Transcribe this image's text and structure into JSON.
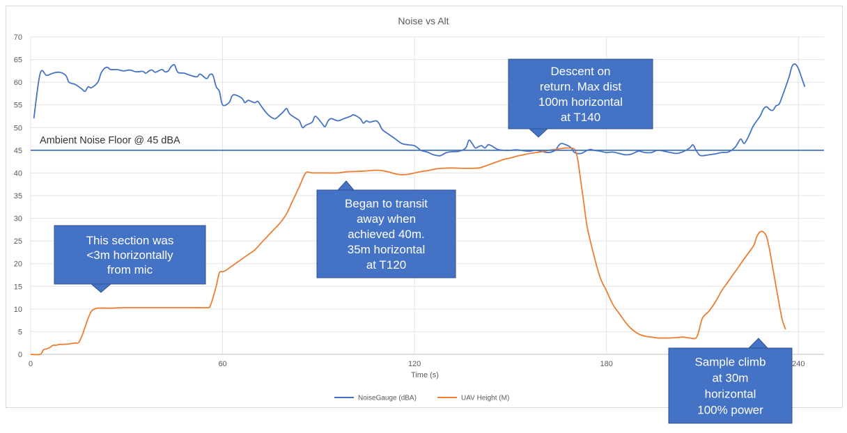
{
  "chart_data": {
    "type": "line",
    "title": "Noise vs Alt",
    "xlabel": "Time (s)",
    "ylabel": "",
    "xlim": [
      0,
      248
    ],
    "ylim": [
      0,
      70
    ],
    "x_ticks": [
      "0",
      "60",
      "120",
      "180",
      "240"
    ],
    "y_ticks": [
      "0",
      "5",
      "10",
      "15",
      "20",
      "25",
      "30",
      "35",
      "40",
      "45",
      "50",
      "55",
      "60",
      "65",
      "70"
    ],
    "grid": true,
    "legend_position": "bottom",
    "reference_line": {
      "y": 45,
      "label": "Ambient Noise Floor @ 45 dBA"
    },
    "series": [
      {
        "name": "NoiseGauge (dBA)",
        "color": "#4472c4",
        "points": [
          [
            1,
            52
          ],
          [
            3,
            62
          ],
          [
            5,
            61.5
          ],
          [
            7,
            62
          ],
          [
            9,
            62.2
          ],
          [
            11,
            61.5
          ],
          [
            12,
            60
          ],
          [
            14,
            59.5
          ],
          [
            16,
            58.5
          ],
          [
            17,
            58
          ],
          [
            18,
            59
          ],
          [
            19,
            58.8
          ],
          [
            21,
            60
          ],
          [
            22,
            62
          ],
          [
            23,
            63
          ],
          [
            24,
            63.3
          ],
          [
            25,
            62.8
          ],
          [
            27,
            62.8
          ],
          [
            29,
            62.5
          ],
          [
            31,
            62.7
          ],
          [
            33,
            62.3
          ],
          [
            35,
            62.4
          ],
          [
            36,
            62
          ],
          [
            37,
            62.5
          ],
          [
            38,
            62.7
          ],
          [
            39,
            62.2
          ],
          [
            41,
            62.8
          ],
          [
            42,
            62.3
          ],
          [
            43,
            62.5
          ],
          [
            44,
            63.5
          ],
          [
            45,
            63.8
          ],
          [
            46,
            62.2
          ],
          [
            48,
            62
          ],
          [
            50,
            61.5
          ],
          [
            52,
            61.2
          ],
          [
            53,
            61.8
          ],
          [
            55,
            60.8
          ],
          [
            56,
            61.7
          ],
          [
            57,
            61.5
          ],
          [
            58,
            59
          ],
          [
            59,
            58
          ],
          [
            60,
            55
          ],
          [
            62,
            55.5
          ],
          [
            63,
            57
          ],
          [
            64,
            57.2
          ],
          [
            66,
            56.5
          ],
          [
            67,
            55.5
          ],
          [
            68,
            56
          ],
          [
            70,
            55.5
          ],
          [
            71,
            55.8
          ],
          [
            72,
            54.8
          ],
          [
            74,
            53
          ],
          [
            76,
            52
          ],
          [
            77,
            52.2
          ],
          [
            79,
            53.5
          ],
          [
            80,
            54.2
          ],
          [
            81,
            53
          ],
          [
            83,
            52
          ],
          [
            84,
            51.5
          ],
          [
            85,
            50
          ],
          [
            86,
            50.5
          ],
          [
            88,
            51.2
          ],
          [
            89,
            52.5
          ],
          [
            91,
            51
          ],
          [
            92,
            50.2
          ],
          [
            93,
            51.5
          ],
          [
            94,
            52
          ],
          [
            96,
            51.5
          ],
          [
            98,
            52
          ],
          [
            100,
            52.5
          ],
          [
            101,
            52.8
          ],
          [
            103,
            52
          ],
          [
            104,
            51
          ],
          [
            105,
            51.5
          ],
          [
            106,
            51.2
          ],
          [
            108,
            51.5
          ],
          [
            109,
            50.8
          ],
          [
            110,
            49.5
          ],
          [
            112,
            48.5
          ],
          [
            114,
            47.5
          ],
          [
            116,
            46.5
          ],
          [
            118,
            46.2
          ],
          [
            120,
            46
          ],
          [
            122,
            45
          ],
          [
            124,
            44.6
          ],
          [
            126,
            44
          ],
          [
            128,
            43.8
          ],
          [
            130,
            44.5
          ],
          [
            132,
            44.7
          ],
          [
            134,
            44.8
          ],
          [
            136,
            45.5
          ],
          [
            137,
            47.2
          ],
          [
            138,
            46.5
          ],
          [
            139,
            45.5
          ],
          [
            140,
            45.8
          ],
          [
            141,
            46
          ],
          [
            142,
            45.5
          ],
          [
            143,
            46.2
          ],
          [
            144,
            46
          ],
          [
            146,
            45.2
          ],
          [
            148,
            45
          ],
          [
            150,
            45
          ],
          [
            152,
            45.1
          ],
          [
            154,
            44.9
          ],
          [
            156,
            44.8
          ],
          [
            158,
            45
          ],
          [
            160,
            44.7
          ],
          [
            162,
            44.5
          ],
          [
            164,
            45
          ],
          [
            165,
            46
          ],
          [
            166,
            46.5
          ],
          [
            168,
            46
          ],
          [
            169,
            45.5
          ],
          [
            170,
            44.5
          ],
          [
            172,
            44.3
          ],
          [
            174,
            45
          ],
          [
            175,
            45.2
          ],
          [
            176,
            45
          ],
          [
            178,
            44.8
          ],
          [
            180,
            44.5
          ],
          [
            182,
            44.6
          ],
          [
            184,
            44.3
          ],
          [
            186,
            44
          ],
          [
            188,
            44.2
          ],
          [
            190,
            44.8
          ],
          [
            192,
            44.5
          ],
          [
            194,
            44.5
          ],
          [
            196,
            45
          ],
          [
            198,
            44.8
          ],
          [
            200,
            44.5
          ],
          [
            202,
            44.3
          ],
          [
            204,
            44.7
          ],
          [
            206,
            45.5
          ],
          [
            207,
            46.2
          ],
          [
            208,
            45
          ],
          [
            209,
            44
          ],
          [
            210,
            43.8
          ],
          [
            212,
            44
          ],
          [
            214,
            44.2
          ],
          [
            216,
            44.5
          ],
          [
            218,
            44.6
          ],
          [
            220,
            45.5
          ],
          [
            221,
            46.5
          ],
          [
            222,
            47.5
          ],
          [
            223,
            46.5
          ],
          [
            224,
            47.5
          ],
          [
            225,
            49
          ],
          [
            226,
            50.5
          ],
          [
            228,
            52.5
          ],
          [
            229,
            54
          ],
          [
            230,
            54.6
          ],
          [
            231,
            54
          ],
          [
            232,
            53.8
          ],
          [
            233,
            54.8
          ],
          [
            234,
            55.2
          ],
          [
            235,
            57
          ],
          [
            237,
            61
          ],
          [
            238,
            63.5
          ],
          [
            239,
            64
          ],
          [
            240,
            63
          ],
          [
            241,
            61
          ],
          [
            242,
            59
          ]
        ]
      },
      {
        "name": "UAV Height (M)",
        "color": "#ed7d31",
        "points": [
          [
            0,
            0
          ],
          [
            3,
            0
          ],
          [
            4,
            1
          ],
          [
            5,
            1.2
          ],
          [
            6,
            1.5
          ],
          [
            7,
            2
          ],
          [
            8,
            2
          ],
          [
            9,
            2.2
          ],
          [
            10,
            2.2
          ],
          [
            12,
            2.3
          ],
          [
            14,
            2.5
          ],
          [
            15,
            2.6
          ],
          [
            16,
            4
          ],
          [
            17,
            6
          ],
          [
            18,
            8
          ],
          [
            19,
            9.5
          ],
          [
            20,
            10
          ],
          [
            21,
            10.2
          ],
          [
            25,
            10.2
          ],
          [
            30,
            10.3
          ],
          [
            35,
            10.3
          ],
          [
            40,
            10.3
          ],
          [
            45,
            10.3
          ],
          [
            50,
            10.3
          ],
          [
            55,
            10.3
          ],
          [
            56,
            10.5
          ],
          [
            57,
            12.5
          ],
          [
            58,
            15
          ],
          [
            59,
            18
          ],
          [
            60,
            18.2
          ],
          [
            61,
            18.5
          ],
          [
            62,
            19
          ],
          [
            64,
            20
          ],
          [
            66,
            21
          ],
          [
            68,
            22
          ],
          [
            70,
            23
          ],
          [
            72,
            24.5
          ],
          [
            74,
            26
          ],
          [
            76,
            27.5
          ],
          [
            78,
            29
          ],
          [
            80,
            31
          ],
          [
            82,
            34
          ],
          [
            84,
            37
          ],
          [
            86,
            40
          ],
          [
            88,
            40
          ],
          [
            92,
            40
          ],
          [
            96,
            40
          ],
          [
            98,
            40.2
          ],
          [
            100,
            40.3
          ],
          [
            104,
            40.4
          ],
          [
            108,
            40.6
          ],
          [
            110,
            40.5
          ],
          [
            112,
            40.2
          ],
          [
            114,
            39.8
          ],
          [
            116,
            39.6
          ],
          [
            118,
            39.7
          ],
          [
            120,
            40
          ],
          [
            122,
            40.3
          ],
          [
            124,
            40.5
          ],
          [
            126,
            40.8
          ],
          [
            128,
            41
          ],
          [
            132,
            41.1
          ],
          [
            136,
            41
          ],
          [
            140,
            41.1
          ],
          [
            142,
            41.5
          ],
          [
            144,
            42
          ],
          [
            146,
            42.5
          ],
          [
            148,
            43
          ],
          [
            150,
            43.3
          ],
          [
            152,
            43.7
          ],
          [
            154,
            44
          ],
          [
            156,
            44.3
          ],
          [
            158,
            44.5
          ],
          [
            160,
            44.7
          ],
          [
            162,
            45
          ],
          [
            164,
            45.2
          ],
          [
            166,
            45.4
          ],
          [
            168,
            45.5
          ],
          [
            170,
            45.2
          ],
          [
            171,
            43
          ],
          [
            172,
            38
          ],
          [
            173,
            33
          ],
          [
            174,
            28
          ],
          [
            176,
            22
          ],
          [
            178,
            17
          ],
          [
            180,
            14
          ],
          [
            182,
            11
          ],
          [
            184,
            9
          ],
          [
            186,
            7
          ],
          [
            188,
            5.5
          ],
          [
            190,
            4.5
          ],
          [
            192,
            4
          ],
          [
            194,
            3.8
          ],
          [
            196,
            3.6
          ],
          [
            198,
            3.6
          ],
          [
            200,
            3.6
          ],
          [
            202,
            3.7
          ],
          [
            204,
            3.8
          ],
          [
            206,
            3.6
          ],
          [
            208,
            3.6
          ],
          [
            209,
            5.5
          ],
          [
            210,
            8
          ],
          [
            212,
            9.5
          ],
          [
            214,
            11.5
          ],
          [
            216,
            14
          ],
          [
            218,
            16
          ],
          [
            220,
            18
          ],
          [
            222,
            20
          ],
          [
            224,
            22
          ],
          [
            226,
            24
          ],
          [
            227,
            26
          ],
          [
            228,
            27
          ],
          [
            229,
            27
          ],
          [
            230,
            26
          ],
          [
            231,
            23
          ],
          [
            232,
            19
          ],
          [
            233,
            15
          ],
          [
            234,
            11
          ],
          [
            235,
            7.5
          ],
          [
            236,
            5.5
          ]
        ]
      }
    ],
    "annotations": [
      {
        "lines": [
          "This section was",
          "<3m horizontally",
          "from mic"
        ]
      },
      {
        "lines": [
          "Began to transit",
          "away when",
          "achieved 40m.",
          "35m horizontal",
          "at T120"
        ]
      },
      {
        "lines": [
          "Descent on",
          "return. Max dist",
          "100m horizontal",
          "at T140"
        ]
      },
      {
        "lines": [
          "Sample climb",
          "at 30m",
          "horizontal",
          "100% power"
        ]
      }
    ],
    "callout_color": "#4472c4"
  }
}
